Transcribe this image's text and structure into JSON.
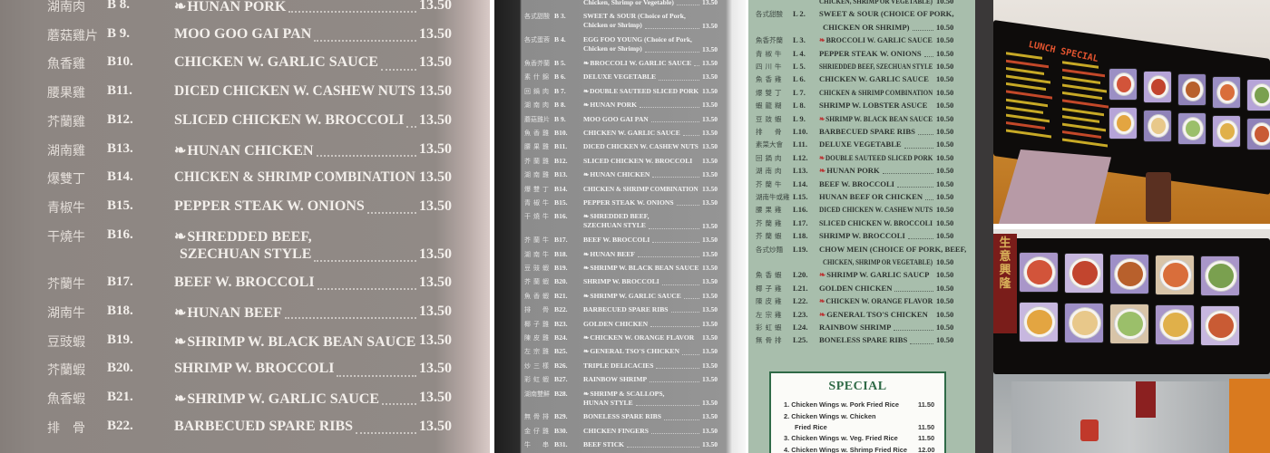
{
  "panel1": {
    "items": [
      {
        "cn": "湖南肉",
        "code": "B 8.",
        "name": "HUNAN PORK",
        "price": "13.50",
        "spicy": true
      },
      {
        "cn": "蘑菇雞片",
        "code": "B 9.",
        "name": "MOO GOO GAI PAN",
        "price": "13.50",
        "spicy": false
      },
      {
        "cn": "魚香雞",
        "code": "B10.",
        "name": "CHICKEN W. GARLIC SAUCE",
        "price": "13.50",
        "spicy": false
      },
      {
        "cn": "腰果雞",
        "code": "B11.",
        "name": "DICED CHICKEN W. CASHEW NUTS",
        "price": "13.50",
        "spicy": false
      },
      {
        "cn": "芥蘭雞",
        "code": "B12.",
        "name": "SLICED CHICKEN W. BROCCOLI",
        "price": "13.50",
        "spicy": false
      },
      {
        "cn": "湖南雞",
        "code": "B13.",
        "name": "HUNAN CHICKEN",
        "price": "13.50",
        "spicy": true
      },
      {
        "cn": "爆雙丁",
        "code": "B14.",
        "name": "CHICKEN & SHRIMP COMBINATION",
        "price": "13.50",
        "spicy": false
      },
      {
        "cn": "青椒牛",
        "code": "B15.",
        "name": "PEPPER STEAK W. ONIONS",
        "price": "13.50",
        "spicy": false
      },
      {
        "cn": "干燒牛",
        "code": "B16.",
        "name": "SHREDDED BEEF,",
        "name2": "SZECHUAN STYLE",
        "price": "13.50",
        "spicy": true
      },
      {
        "cn": "芥蘭牛",
        "code": "B17.",
        "name": "BEEF W. BROCCOLI",
        "price": "13.50",
        "spicy": false
      },
      {
        "cn": "湖南牛",
        "code": "B18.",
        "name": "HUNAN BEEF",
        "price": "13.50",
        "spicy": true
      },
      {
        "cn": "豆豉蝦",
        "code": "B19.",
        "name": "SHRIMP W. BLACK BEAN SAUCE",
        "price": "13.50",
        "spicy": true
      },
      {
        "cn": "芥蘭蝦",
        "code": "B20.",
        "name": "SHRIMP W. BROCCOLI",
        "price": "13.50",
        "spicy": false
      },
      {
        "cn": "魚香蝦",
        "code": "B21.",
        "name": "SHRIMP W. GARLIC SAUCE",
        "price": "13.50",
        "spicy": true
      },
      {
        "cn": "排　骨",
        "code": "B22.",
        "name": "BARBECUED SPARE RIBS",
        "price": "13.50",
        "spicy": false
      }
    ]
  },
  "panel2": {
    "items": [
      {
        "cn": "",
        "code": "",
        "name": "Chicken, Shrimp or Vegetable)",
        "price": "13.50",
        "spicy": false
      },
      {
        "cn": "各式甜酸",
        "code": "B 3.",
        "name": "SWEET & SOUR (Choice of Pork,",
        "name2": "Chicken or Shrimp)",
        "price": "13.50",
        "spicy": false
      },
      {
        "cn": "各式蛋蓉",
        "code": "B 4.",
        "name": "EGG FOO YOUNG (Choice of Pork,",
        "name2": "Chicken or Shrimp)",
        "price": "13.50",
        "spicy": false
      },
      {
        "cn": "魚香芥蘭",
        "code": "B 5.",
        "name": "BROCCOLI W. GARLIC SAUCE",
        "price": "13.50",
        "spicy": true
      },
      {
        "cn": "素什錦",
        "code": "B 6.",
        "name": "DELUXE VEGETABLE",
        "price": "13.50",
        "spicy": false
      },
      {
        "cn": "回鍋肉",
        "code": "B 7.",
        "name": "DOUBLE SAUTEED SLICED PORK",
        "price": "13.50",
        "spicy": true
      },
      {
        "cn": "湖南肉",
        "code": "B 8.",
        "name": "HUNAN PORK",
        "price": "13.50",
        "spicy": true
      },
      {
        "cn": "蘑菇雞片",
        "code": "B 9.",
        "name": "MOO GOO GAI PAN",
        "price": "13.50",
        "spicy": false
      },
      {
        "cn": "魚香雞",
        "code": "B10.",
        "name": "CHICKEN W. GARLIC SAUCE",
        "price": "13.50",
        "spicy": false
      },
      {
        "cn": "腰果雞",
        "code": "B11.",
        "name": "DICED CHICKEN W. CASHEW NUTS",
        "price": "13.50",
        "spicy": false
      },
      {
        "cn": "芥蘭雞",
        "code": "B12.",
        "name": "SLICED CHICKEN W. BROCCOLI",
        "price": "13.50",
        "spicy": false
      },
      {
        "cn": "湖南雞",
        "code": "B13.",
        "name": "HUNAN CHICKEN",
        "price": "13.50",
        "spicy": true
      },
      {
        "cn": "爆雙丁",
        "code": "B14.",
        "name": "CHICKEN & SHRIMP COMBINATION",
        "price": "13.50",
        "spicy": false
      },
      {
        "cn": "青椒牛",
        "code": "B15.",
        "name": "PEPPER STEAK W. ONIONS",
        "price": "13.50",
        "spicy": false
      },
      {
        "cn": "干燒牛",
        "code": "B16.",
        "name": "SHREDDED BEEF,",
        "name2": "SZECHUAN STYLE",
        "price": "13.50",
        "spicy": true
      },
      {
        "cn": "芥蘭牛",
        "code": "B17.",
        "name": "BEEF W. BROCCOLI",
        "price": "13.50",
        "spicy": false
      },
      {
        "cn": "湖南牛",
        "code": "B18.",
        "name": "HUNAN BEEF",
        "price": "13.50",
        "spicy": true
      },
      {
        "cn": "豆豉蝦",
        "code": "B19.",
        "name": "SHRIMP W. BLACK BEAN SAUCE",
        "price": "13.50",
        "spicy": true
      },
      {
        "cn": "芥蘭蝦",
        "code": "B20.",
        "name": "SHRIMP W. BROCCOLI",
        "price": "13.50",
        "spicy": false
      },
      {
        "cn": "魚香蝦",
        "code": "B21.",
        "name": "SHRIMP W. GARLIC SAUCE",
        "price": "13.50",
        "spicy": true
      },
      {
        "cn": "排　骨",
        "code": "B22.",
        "name": "BARBECUED SPARE RIBS",
        "price": "13.50",
        "spicy": false
      },
      {
        "cn": "椰子雞",
        "code": "B23.",
        "name": "GOLDEN CHICKEN",
        "price": "13.50",
        "spicy": false
      },
      {
        "cn": "陳皮雞",
        "code": "B24.",
        "name": "CHICKEN W. ORANGE FLAVOR",
        "price": "13.50",
        "spicy": true
      },
      {
        "cn": "左宗雞",
        "code": "B25.",
        "name": "GENERAL TSO'S CHICKEN",
        "price": "13.50",
        "spicy": true
      },
      {
        "cn": "炒三樣",
        "code": "B26.",
        "name": "TRIPLE DELICACIES",
        "price": "13.50",
        "spicy": false
      },
      {
        "cn": "彩虹蝦",
        "code": "B27.",
        "name": "RAINBOW SHRIMP",
        "price": "13.50",
        "spicy": false
      },
      {
        "cn": "湖南雙鮮",
        "code": "B28.",
        "name": "SHRIMP & SCALLOPS,",
        "name2": "HUNAN STYLE",
        "price": "13.50",
        "spicy": true
      },
      {
        "cn": "無骨排",
        "code": "B29.",
        "name": "BONELESS SPARE RIBS",
        "price": "13.50",
        "spicy": false
      },
      {
        "cn": "金仔雞",
        "code": "B30.",
        "name": "CHICKEN FINGERS",
        "price": "13.50",
        "spicy": false
      },
      {
        "cn": "牛　串",
        "code": "B31.",
        "name": "BEEF STICK",
        "price": "13.50",
        "spicy": false
      }
    ]
  },
  "panel3": {
    "items": [
      {
        "cn": "",
        "code": "",
        "name": "CHICKEN, SHRIMP OR VEGETABLE)",
        "price": "10.50",
        "spicy": false
      },
      {
        "cn": "各式甜酸",
        "code": "L 2.",
        "name": "SWEET & SOUR (CHOICE OF PORK,",
        "name2": "CHICKEN OR SHRIMP)",
        "price": "10.50",
        "spicy": false
      },
      {
        "cn": "魚香芥蘭",
        "code": "L 3.",
        "name": "BROCCOLI W. GARLIC SAUCE",
        "price": "10.50",
        "spicy": true
      },
      {
        "cn": "青椒牛",
        "code": "L 4.",
        "name": "PEPPER STEAK W. ONIONS",
        "price": "10.50",
        "spicy": false
      },
      {
        "cn": "四川牛",
        "code": "L 5.",
        "name": "SHRIEDDED BEEF, SZECHUAN STYLE",
        "price": "10.50",
        "spicy": false
      },
      {
        "cn": "魚香雞",
        "code": "L 6.",
        "name": "CHICKEN W. GARLIC SAUCE",
        "price": "10.50",
        "spicy": false
      },
      {
        "cn": "爆雙丁",
        "code": "L 7.",
        "name": "CHICKEN & SHRIMP COMBINATION",
        "price": "10.50",
        "spicy": false
      },
      {
        "cn": "蝦龍糊",
        "code": "L 8.",
        "name": "SHRIMP W. LOBSTER ASUCE",
        "price": "10.50",
        "spicy": false
      },
      {
        "cn": "豆豉蝦",
        "code": "L 9.",
        "name": "SHRIMP W. BLACK BEAN SAUCE",
        "price": "10.50",
        "spicy": true
      },
      {
        "cn": "排　骨",
        "code": "L10.",
        "name": "BARBECUED SPARE RIBS",
        "price": "10.50",
        "spicy": false
      },
      {
        "cn": "素菜大會",
        "code": "L11.",
        "name": "DELUXE VEGETABLE",
        "price": "10.50",
        "spicy": false
      },
      {
        "cn": "回鍋肉",
        "code": "L12.",
        "name": "DOUBLE SAUTEED SLICED PORK",
        "price": "10.50",
        "spicy": true
      },
      {
        "cn": "湖南肉",
        "code": "L13.",
        "name": "HUNAN PORK",
        "price": "10.50",
        "spicy": true
      },
      {
        "cn": "芥蘭牛",
        "code": "L14.",
        "name": "BEEF W. BROCCOLI",
        "price": "10.50",
        "spicy": false
      },
      {
        "cn": "湖南牛或雞",
        "code": "L15.",
        "name": "HUNAN BEEF OR CHICKEN",
        "price": "10.50",
        "spicy": false
      },
      {
        "cn": "腰果雞",
        "code": "L16.",
        "name": "DICED CHICKEN W. CASHEW NUTS",
        "price": "10.50",
        "spicy": false
      },
      {
        "cn": "芥蘭雞",
        "code": "L17.",
        "name": "SLICED CHICKEN W. BROCCOLI",
        "price": "10.50",
        "spicy": false
      },
      {
        "cn": "芥蘭蝦",
        "code": "L18.",
        "name": "SHRIMP W. BROCCOLI",
        "price": "10.50",
        "spicy": false
      },
      {
        "cn": "各式炒麵",
        "code": "L19.",
        "name": "CHOW MEIN (CHOICE OF PORK, BEEF,",
        "name2": "CHICKEN, SHRIMP OR VEGETABLE)",
        "price": "10.50",
        "spicy": false
      },
      {
        "cn": "魚香蝦",
        "code": "L20.",
        "name": "SHRIMP W. GARLIC SAUCP",
        "price": "10.50",
        "spicy": true
      },
      {
        "cn": "椰子雞",
        "code": "L21.",
        "name": "GOLDEN CHICKEN",
        "price": "10.50",
        "spicy": false
      },
      {
        "cn": "陳皮雞",
        "code": "L22.",
        "name": "CHICKEN W. ORANGE FLAVOR",
        "price": "10.50",
        "spicy": true
      },
      {
        "cn": "左宗雞",
        "code": "L23.",
        "name": "GENERAL TSO'S CHICKEN",
        "price": "10.50",
        "spicy": true
      },
      {
        "cn": "彩虹蝦",
        "code": "L24.",
        "name": "RAINBOW SHRIMP",
        "price": "10.50",
        "spicy": false
      },
      {
        "cn": "無骨排",
        "code": "L25.",
        "name": "BONELESS SPARE RIBS",
        "price": "10.50",
        "spicy": false
      }
    ],
    "special": {
      "title": "SPECIAL",
      "items": [
        {
          "name": "1. Chicken Wings w. Pork Fried Rice",
          "price": "11.50"
        },
        {
          "name": "2. Chicken Wings w. Chicken",
          "name2": "Fried Rice",
          "price": "11.50"
        },
        {
          "name": "3. Chicken Wings w. Veg. Fried Rice",
          "price": "11.50"
        },
        {
          "name": "4. Chicken Wings w. Shrimp Fried Rice",
          "price": "12.00"
        }
      ]
    }
  },
  "photos": {
    "top_sign_title": "LUNCH SPECIAL",
    "bottom_banner_text": "生意興隆",
    "colors": {
      "led_yellow": "#e8c52b",
      "led_red": "#e3542f",
      "wall_orange": "#c8862d",
      "menu_green": "#2f6a47"
    }
  },
  "icons": {
    "spicy": "chili-pepper-icon"
  }
}
